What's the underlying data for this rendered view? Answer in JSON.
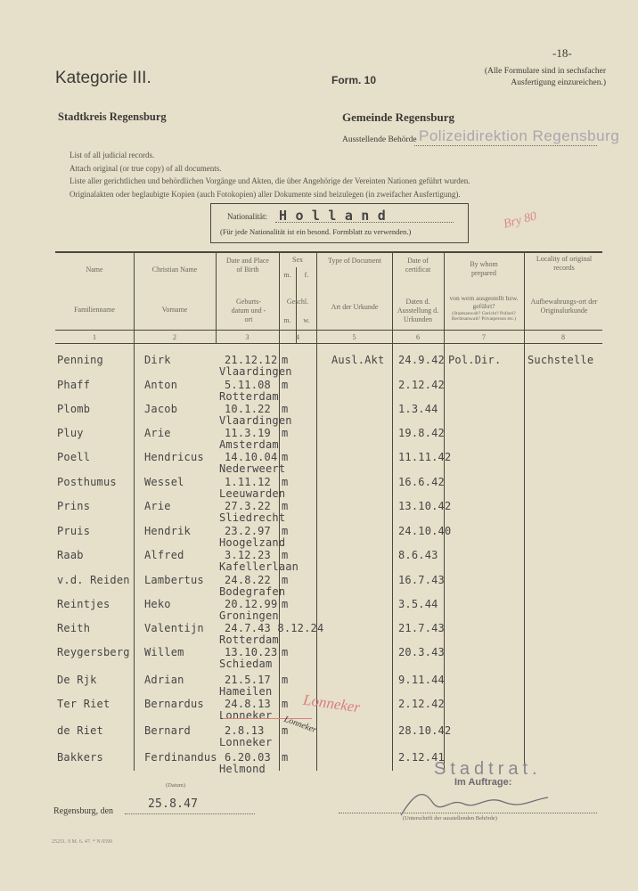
{
  "page_number": "-18-",
  "category": "Kategorie III.",
  "form": "Form. 10",
  "note_copies": [
    "(Alle Formulare sind in sechsfacher",
    "Ausfertigung einzureichen.)"
  ],
  "stadtkreis": "Stadtkreis Regensburg",
  "gemeinde": "Gemeinde Regensburg",
  "issuing_authority_label": "Ausstellende Behörde",
  "issuing_authority_stamp": "Polizeidirektion Regensburg",
  "instructions": [
    "List of all judicial records.",
    "Attach original (or true copy) of all documents.",
    "Liste aller gerichtlichen und behördlichen Vorgänge und Akten, die über Angehörige der Vereinten Nationen geführt wurden.",
    "Originalakten oder beglaubigte Kopien (auch Fotokopien) aller Dokumente sind beizulegen (in zweifacher Ausfertigung)."
  ],
  "nationality_label": "Nationalität:",
  "nationality_value": "H o l l a n d",
  "nationality_note": "(Für jede Nationalität ist ein besond. Formblatt zu verwenden.)",
  "red_initials": "Bry 80",
  "columns": [
    {
      "en": "Name",
      "de": "Familienname",
      "num": "1"
    },
    {
      "en": "Christian Name",
      "de": "Vorname",
      "num": "2"
    },
    {
      "en": "Date and Place of Birth",
      "de": "Geburts-datum und -ort",
      "num": "3"
    },
    {
      "en": "Sex",
      "en_sub": [
        "m.",
        "f."
      ],
      "de": "Geschl.",
      "de_sub": [
        "m.",
        "w."
      ],
      "num": "4"
    },
    {
      "en": "Type of Document",
      "de": "Art der Urkunde",
      "num": "5"
    },
    {
      "en": "Date of certificat",
      "de": "Daten d. Ausstellung d. Urkunden",
      "num": "6"
    },
    {
      "en": "By whom prepared",
      "de": "von wem ausgestellt bzw. geführt?",
      "de_note": "(Staatsanwalt? Gericht? Polizei? Rechtsanwalt? Privatperson etc.)",
      "num": "7"
    },
    {
      "en": "Locality of original records",
      "de": "Aufbewahrungs-ort der Originalurkunde",
      "num": "8"
    }
  ],
  "rows": [
    {
      "name": "Penning",
      "christian": "Dirk",
      "birth": "21.12.12",
      "sex": "m",
      "doc": "Ausl.Akt",
      "cert": "24.9.42",
      "by": "Pol.Dir.",
      "locality": "Suchstelle",
      "place": "Vlaardingen"
    },
    {
      "name": "Phaff",
      "christian": "Anton",
      "birth": "5.11.08",
      "sex": "m",
      "doc": "",
      "cert": "2.12.42",
      "by": "",
      "locality": "",
      "place": "Rotterdam"
    },
    {
      "name": "Plomb",
      "christian": "Jacob",
      "birth": "10.1.22",
      "sex": "m",
      "doc": "",
      "cert": "1.3.44",
      "by": "",
      "locality": "",
      "place": "Vlaardingen"
    },
    {
      "name": "Pluy",
      "christian": "Arie",
      "birth": "11.3.19",
      "sex": "m",
      "doc": "",
      "cert": "19.8.42",
      "by": "",
      "locality": "",
      "place": "Amsterdam"
    },
    {
      "name": "Poell",
      "christian": "Hendricus",
      "birth": "14.10.04",
      "sex": "m",
      "doc": "",
      "cert": "11.11.42",
      "by": "",
      "locality": "",
      "place": "Nederweert"
    },
    {
      "name": "Posthumus",
      "christian": "Wessel",
      "birth": "1.11.12",
      "sex": "m",
      "doc": "",
      "cert": "16.6.42",
      "by": "",
      "locality": "",
      "place": "Leeuwarden"
    },
    {
      "name": "Prins",
      "christian": "Arie",
      "birth": "27.3.22",
      "sex": "m",
      "doc": "",
      "cert": "13.10.42",
      "by": "",
      "locality": "",
      "place": "Sliedrecht"
    },
    {
      "name": "Pruis",
      "christian": "Hendrik",
      "birth": "23.2.97",
      "sex": "m",
      "doc": "",
      "cert": "24.10.40",
      "by": "",
      "locality": "",
      "place": "Hoogelzand"
    },
    {
      "name": "Raab",
      "christian": "Alfred",
      "birth": "3.12.23",
      "sex": "m",
      "doc": "",
      "cert": "8.6.43",
      "by": "",
      "locality": "",
      "place": "Kafellerlaan"
    },
    {
      "name": "v.d. Reiden",
      "christian": "Lambertus",
      "birth": "24.8.22",
      "sex": "m",
      "doc": "",
      "cert": "16.7.43",
      "by": "",
      "locality": "",
      "place": "Bodegrafen"
    },
    {
      "name": "Reintjes",
      "christian": "Heko",
      "birth": "20.12.99",
      "sex": "m",
      "doc": "",
      "cert": "3.5.44",
      "by": "",
      "locality": "",
      "place": "Groningen"
    },
    {
      "name": "Reith",
      "christian": "Valentijn",
      "birth": "24.7.43 8.12.24",
      "sex": "",
      "doc": "",
      "cert": "21.7.43",
      "by": "",
      "locality": "",
      "place": "Rotterdam"
    },
    {
      "name": "Reygersberg",
      "christian": "Willem",
      "birth": "13.10.23",
      "sex": "m",
      "doc": "",
      "cert": "20.3.43",
      "by": "",
      "locality": "",
      "place": "Schiedam"
    },
    {
      "name": "De Rjk",
      "christian": "Adrian",
      "birth": "21.5.17",
      "sex": "m",
      "doc": "",
      "cert": "9.11.44",
      "by": "",
      "locality": "",
      "place": "Hameilen"
    },
    {
      "name": "Ter Riet",
      "christian": "Bernardus",
      "birth": "24.8.13",
      "sex": "m",
      "doc": "",
      "cert": "2.12.42",
      "by": "",
      "locality": "",
      "place": "Lonneker"
    },
    {
      "name": "de Riet",
      "christian": "Bernard",
      "birth": "2.8.13",
      "sex": "m",
      "doc": "",
      "cert": "28.10.42",
      "by": "",
      "locality": "",
      "place": "Lonneker"
    },
    {
      "name": "Bakkers",
      "christian": "Ferdinandus",
      "birth": "6.20.03",
      "sex": "m",
      "doc": "",
      "cert": "2.12.41",
      "by": "",
      "locality": "",
      "place": "Helmond"
    }
  ],
  "handwritten_corrections": [
    "Lonneker",
    "Lonneker"
  ],
  "footer": {
    "date_caption": "(Datum)",
    "place_label": "Regensburg, den",
    "date_value": "25.8.47",
    "stamp": "Stadtrat.",
    "im_auftrage": "Im Auftrage:",
    "signature_caption": "(Unterschrift der ausstellenden Behörde)",
    "print_code": "25251. 9 M. 6. 47. * N 0590"
  }
}
